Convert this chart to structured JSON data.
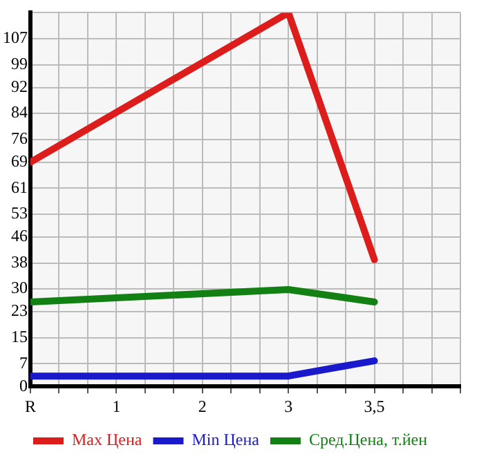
{
  "chart_data": {
    "type": "line",
    "categories": [
      "R",
      "1",
      "2",
      "3",
      "3,5",
      null
    ],
    "series": [
      {
        "name": "Max Цена",
        "color": "#dd1c1c",
        "values": [
          69,
          null,
          null,
          115,
          39,
          null
        ]
      },
      {
        "name": "Min Цена",
        "color": "#1a1acc",
        "values": [
          3.2,
          null,
          null,
          3.2,
          7.9,
          null
        ]
      },
      {
        "name": "Сред.Цена, т.йен",
        "color": "#138013",
        "values": [
          26,
          null,
          null,
          29.8,
          26,
          null
        ]
      }
    ],
    "ylim": [
      0,
      115
    ],
    "yticks": [
      0,
      7,
      15,
      23,
      30,
      38,
      46,
      53,
      61,
      69,
      76,
      84,
      92,
      99,
      107,
      {
        "value": 115,
        "label": null
      }
    ],
    "grid": true,
    "legend": "bottom",
    "marker": "none",
    "line_style": "solid"
  }
}
